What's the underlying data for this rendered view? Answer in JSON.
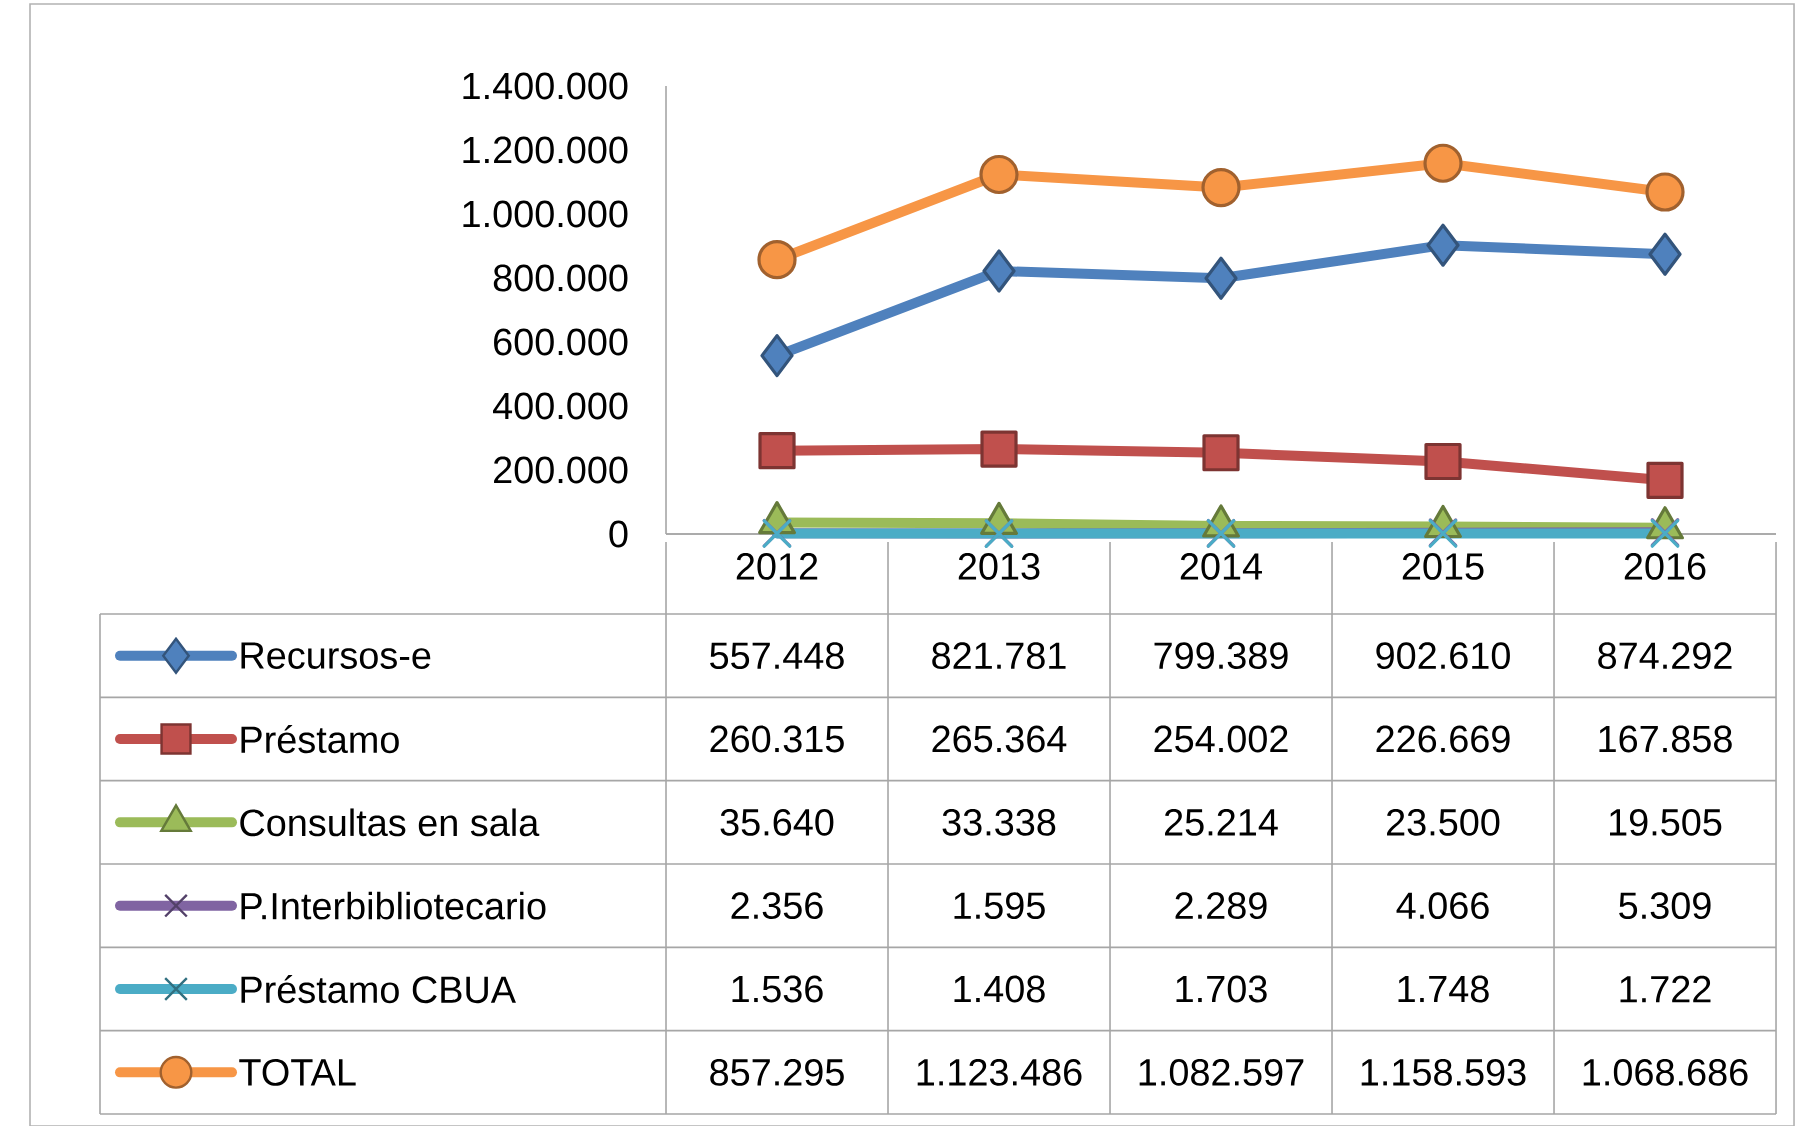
{
  "chart_data": {
    "type": "line",
    "categories": [
      "2012",
      "2013",
      "2014",
      "2015",
      "2016"
    ],
    "ylim": [
      0,
      1400000
    ],
    "yticks": [
      0,
      {
        "value": 200000,
        "label": "200.000"
      },
      {
        "value": 400000,
        "label": "400.000"
      },
      {
        "value": 600000,
        "label": "600.000"
      },
      {
        "value": 800000,
        "label": "800.000"
      },
      {
        "value": 1000000,
        "label": "1.000.000"
      },
      {
        "value": 1200000,
        "label": "1.200.000"
      },
      {
        "value": 1400000,
        "label": "1.400.000"
      }
    ],
    "legend": "bottom",
    "series": [
      {
        "name": "Recursos-e",
        "color": "#4f81bd",
        "marker": "diamond",
        "values": [
          557448,
          821781,
          799389,
          902610,
          874292
        ],
        "value_labels": [
          "557.448",
          "821.781",
          "799.389",
          "902.610",
          "874.292"
        ]
      },
      {
        "name": "Préstamo",
        "color": "#c0504d",
        "marker": "square",
        "values": [
          260315,
          265364,
          254002,
          226669,
          167858
        ],
        "value_labels": [
          "260.315",
          "265.364",
          "254.002",
          "226.669",
          "167.858"
        ]
      },
      {
        "name": "Consultas en sala",
        "color": "#9bbb59",
        "marker": "triangle",
        "values": [
          35640,
          33338,
          25214,
          23500,
          19505
        ],
        "value_labels": [
          "35.640",
          "33.338",
          "25.214",
          "23.500",
          "19.505"
        ]
      },
      {
        "name": "P.Interbibliotecario",
        "color": "#8064a2",
        "marker": "cross",
        "values": [
          2356,
          1595,
          2289,
          4066,
          5309
        ],
        "value_labels": [
          "2.356",
          "1.595",
          "2.289",
          "4.066",
          "5.309"
        ]
      },
      {
        "name": "Préstamo CBUA",
        "color": "#4bacc6",
        "marker": "cross",
        "values": [
          1536,
          1408,
          1703,
          1748,
          1722
        ],
        "value_labels": [
          "1.536",
          "1.408",
          "1.703",
          "1.748",
          "1.722"
        ]
      },
      {
        "name": "TOTAL",
        "color": "#f79646",
        "marker": "circle",
        "values": [
          857295,
          1123486,
          1082597,
          1158593,
          1068686
        ],
        "value_labels": [
          "857.295",
          "1.123.486",
          "1.082.597",
          "1.158.593",
          "1.068.686"
        ]
      }
    ]
  }
}
